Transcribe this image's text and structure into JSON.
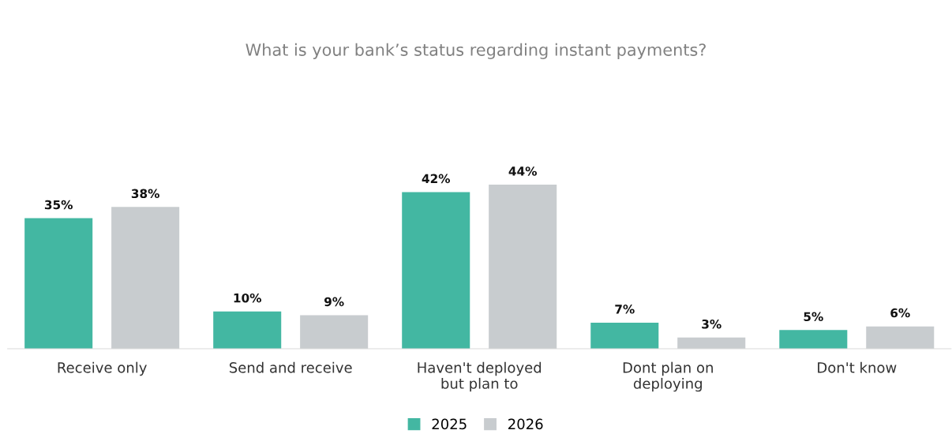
{
  "chart_data": {
    "type": "bar",
    "title": "What is your bank’s status regarding instant payments?",
    "categories": [
      "Receive only",
      "Send and receive",
      "Haven't deployed but plan to",
      "Dont plan on deploying",
      "Don't know"
    ],
    "series": [
      {
        "name": "2025",
        "color": "#43b7a2",
        "values": [
          35,
          10,
          42,
          7,
          5
        ],
        "value_labels": [
          "35%",
          "10%",
          "42%",
          "7%",
          "5%"
        ]
      },
      {
        "name": "2026",
        "color": "#c8cccf",
        "values": [
          38,
          9,
          44,
          3,
          6
        ],
        "value_labels": [
          "38%",
          "9%",
          "44%",
          "3%",
          "6%"
        ]
      }
    ],
    "legend": "bottom",
    "grid": false
  }
}
